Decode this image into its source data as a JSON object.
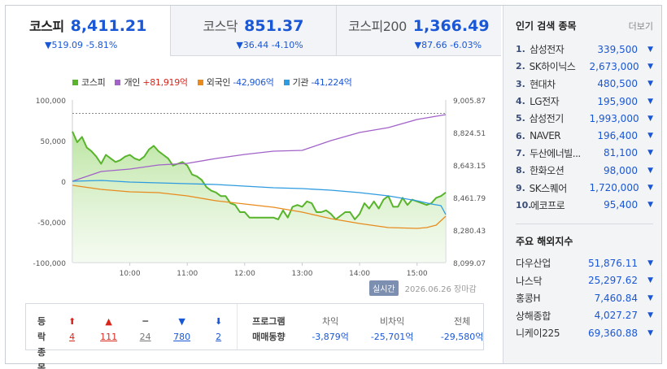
{
  "tabs": [
    {
      "name": "코스피",
      "value": "8,411.21",
      "change": "▼519.09 -5.81%"
    },
    {
      "name": "코스닥",
      "value": "851.37",
      "change": "▼36.44 -4.10%"
    },
    {
      "name": "코스피200",
      "value": "1,366.49",
      "change": "▼87.66 -6.03%"
    }
  ],
  "legend": [
    {
      "label": "코스피",
      "color": "#58b52b"
    },
    {
      "label": "개인",
      "value": "+81,919억",
      "color": "#a262c8",
      "value_color": "#d9261c"
    },
    {
      "label": "외국인",
      "value": "-42,906억",
      "color": "#e88b1e",
      "value_color": "#1a57d6"
    },
    {
      "label": "기관",
      "value": "-41,224억",
      "color": "#2e9be0",
      "value_color": "#1a57d6"
    }
  ],
  "chart_data": {
    "type": "line",
    "x_ticks": [
      "10:00",
      "11:00",
      "12:00",
      "13:00",
      "14:00",
      "15:00"
    ],
    "y_left_ticks": [
      "100,000",
      "50,000",
      "0",
      "-50,000",
      "-100,000"
    ],
    "y_right_ticks": [
      "9,005.87",
      "8,824.51",
      "8,643.15",
      "8,461.79",
      "8,280.43",
      "8,099.07"
    ],
    "y_left_range": [
      -100000,
      100000
    ],
    "y_right_range": [
      8099.07,
      9005.87
    ],
    "x_range": [
      "09:00",
      "15:30"
    ],
    "grid": false,
    "reference_line": 8930.81,
    "series": [
      {
        "name": "코스피",
        "axis": "right",
        "color": "#58b52b",
        "fill": true,
        "x": [
          "09:00",
          "09:05",
          "09:10",
          "09:15",
          "09:20",
          "09:25",
          "09:30",
          "09:35",
          "09:40",
          "09:45",
          "09:50",
          "09:55",
          "10:00",
          "10:05",
          "10:10",
          "10:15",
          "10:20",
          "10:25",
          "10:30",
          "10:35",
          "10:40",
          "10:45",
          "10:50",
          "10:55",
          "11:00",
          "11:05",
          "11:10",
          "11:15",
          "11:20",
          "11:25",
          "11:30",
          "11:35",
          "11:40",
          "11:45",
          "11:50",
          "11:55",
          "12:00",
          "12:05",
          "12:10",
          "12:15",
          "12:20",
          "12:25",
          "12:30",
          "12:35",
          "12:40",
          "12:45",
          "12:50",
          "12:55",
          "13:00",
          "13:05",
          "13:10",
          "13:15",
          "13:20",
          "13:25",
          "13:30",
          "13:35",
          "13:40",
          "13:45",
          "13:50",
          "13:55",
          "14:00",
          "14:05",
          "14:10",
          "14:15",
          "14:20",
          "14:25",
          "14:30",
          "14:35",
          "14:40",
          "14:45",
          "14:50",
          "14:55",
          "15:00",
          "15:05",
          "15:10",
          "15:15",
          "15:20",
          "15:25",
          "15:30"
        ],
        "y": [
          8830,
          8770,
          8800,
          8740,
          8720,
          8690,
          8650,
          8700,
          8680,
          8660,
          8670,
          8690,
          8700,
          8680,
          8670,
          8690,
          8730,
          8750,
          8720,
          8700,
          8680,
          8640,
          8650,
          8660,
          8640,
          8590,
          8580,
          8560,
          8520,
          8500,
          8490,
          8470,
          8470,
          8430,
          8420,
          8380,
          8380,
          8350,
          8350,
          8350,
          8350,
          8350,
          8350,
          8340,
          8390,
          8350,
          8410,
          8420,
          8410,
          8440,
          8430,
          8380,
          8380,
          8390,
          8370,
          8340,
          8360,
          8380,
          8380,
          8340,
          8370,
          8430,
          8400,
          8440,
          8400,
          8450,
          8470,
          8410,
          8410,
          8460,
          8420,
          8450,
          8440,
          8430,
          8420,
          8430,
          8460,
          8470,
          8490
        ]
      },
      {
        "name": "개인",
        "axis": "left",
        "color": "#a262c8",
        "x": [
          "09:00",
          "09:30",
          "10:00",
          "10:30",
          "11:00",
          "11:30",
          "12:00",
          "12:30",
          "13:00",
          "13:30",
          "14:00",
          "14:30",
          "15:00",
          "15:30"
        ],
        "y": [
          0,
          12000,
          15000,
          20000,
          22000,
          28000,
          33000,
          37000,
          38000,
          50000,
          60000,
          66000,
          76000,
          82000
        ]
      },
      {
        "name": "외국인",
        "axis": "left",
        "color": "#e88b1e",
        "x": [
          "09:00",
          "09:30",
          "10:00",
          "10:30",
          "11:00",
          "11:30",
          "12:00",
          "12:30",
          "13:00",
          "13:30",
          "14:00",
          "14:30",
          "15:00",
          "15:10",
          "15:20",
          "15:30"
        ],
        "y": [
          -5000,
          -10000,
          -13000,
          -14000,
          -18000,
          -24000,
          -28000,
          -32000,
          -38000,
          -46000,
          -52000,
          -57000,
          -58000,
          -57000,
          -54000,
          -43000
        ]
      },
      {
        "name": "기관",
        "axis": "left",
        "color": "#2e9be0",
        "x": [
          "09:00",
          "09:30",
          "10:00",
          "10:30",
          "11:00",
          "11:30",
          "12:00",
          "12:30",
          "13:00",
          "13:30",
          "14:00",
          "14:30",
          "15:00",
          "15:15",
          "15:25",
          "15:30"
        ],
        "y": [
          0,
          1000,
          -1000,
          -2000,
          -3000,
          -4000,
          -6000,
          -8000,
          -9000,
          -11000,
          -14000,
          -18000,
          -24000,
          -28000,
          -30000,
          -41000
        ]
      }
    ]
  },
  "realtime_label": "실시간",
  "timestamp": "2026.06.26 장마감",
  "breadth": {
    "labels": [
      "등락",
      "종목"
    ],
    "items": [
      {
        "icon": "⬆",
        "value": "4",
        "color": "red",
        "icon_name": "upper-limit-icon"
      },
      {
        "icon": "▲",
        "value": "111",
        "color": "red",
        "icon_name": "rise-icon"
      },
      {
        "icon": "━",
        "value": "24",
        "color": "gray",
        "icon_name": "unchanged-icon"
      },
      {
        "icon": "▼",
        "value": "780",
        "color": "blue",
        "icon_name": "fall-icon"
      },
      {
        "icon": "⬇",
        "value": "2",
        "color": "blue",
        "icon_name": "lower-limit-icon"
      }
    ]
  },
  "program": {
    "labels": [
      "프로그램",
      "매매동향"
    ],
    "columns": [
      {
        "head": "차익",
        "value": "-3,879억"
      },
      {
        "head": "비차익",
        "value": "-25,701억"
      },
      {
        "head": "전체",
        "value": "-29,580억"
      }
    ]
  },
  "popular": {
    "title": "인기 검색 종목",
    "more": "더보기",
    "items": [
      {
        "rank": "1.",
        "name": "삼성전자",
        "price": "339,500"
      },
      {
        "rank": "2.",
        "name": "SK하이닉스",
        "price": "2,673,000"
      },
      {
        "rank": "3.",
        "name": "현대차",
        "price": "480,500"
      },
      {
        "rank": "4.",
        "name": "LG전자",
        "price": "195,900"
      },
      {
        "rank": "5.",
        "name": "삼성전기",
        "price": "1,993,000"
      },
      {
        "rank": "6.",
        "name": "NAVER",
        "price": "196,400"
      },
      {
        "rank": "7.",
        "name": "두산에너빌...",
        "price": "81,100"
      },
      {
        "rank": "8.",
        "name": "한화오션",
        "price": "98,000"
      },
      {
        "rank": "9.",
        "name": "SK스퀘어",
        "price": "1,720,000"
      },
      {
        "rank": "10.",
        "name": "에코프로",
        "price": "95,400"
      }
    ]
  },
  "world": {
    "title": "주요 해외지수",
    "items": [
      {
        "name": "다우산업",
        "value": "51,876.11"
      },
      {
        "name": "나스닥",
        "value": "25,297.62"
      },
      {
        "name": "홍콩H",
        "value": "7,460.84"
      },
      {
        "name": "상해종합",
        "value": "4,027.27"
      },
      {
        "name": "니케이225",
        "value": "69,360.88"
      }
    ]
  },
  "down_arrow": "▼"
}
